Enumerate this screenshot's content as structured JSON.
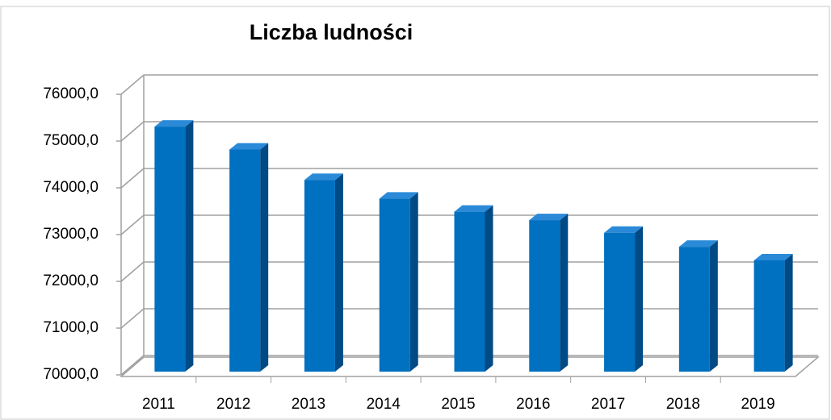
{
  "chart_data": {
    "type": "bar3d",
    "title": "Liczba ludności",
    "categories": [
      "2011",
      "2012",
      "2013",
      "2014",
      "2015",
      "2016",
      "2017",
      "2018",
      "2019"
    ],
    "values": [
      75240,
      74750,
      74100,
      73700,
      73420,
      73240,
      72970,
      72670,
      72380
    ],
    "color": "#0070c0",
    "ylim": [
      70000,
      76000
    ],
    "yticks": [
      {
        "value": 70000,
        "label": "70000,0"
      },
      {
        "value": 71000,
        "label": "71000,0"
      },
      {
        "value": 72000,
        "label": "72000,0"
      },
      {
        "value": 73000,
        "label": "73000,0"
      },
      {
        "value": 74000,
        "label": "74000,0"
      },
      {
        "value": 75000,
        "label": "75000,0"
      },
      {
        "value": 76000,
        "label": "76000,0"
      }
    ],
    "grid": true
  }
}
